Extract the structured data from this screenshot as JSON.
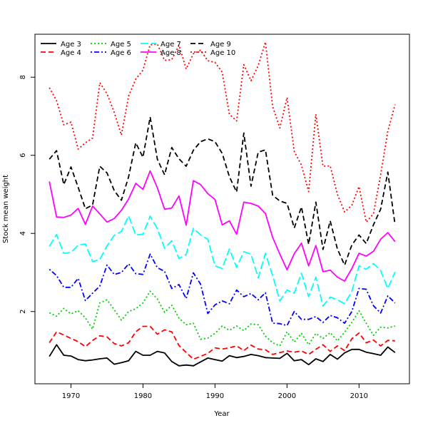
{
  "chart_data": {
    "type": "line",
    "title": "",
    "xlabel": "Year",
    "ylabel": "Stock mean weight",
    "xlim": [
      1965,
      2017
    ],
    "ylim": [
      0.15,
      9.1
    ],
    "x_ticks": [
      1970,
      1980,
      1990,
      2000,
      2010
    ],
    "y_ticks": [
      2,
      4,
      6,
      8
    ],
    "grid": false,
    "legend_position": "top-left",
    "x": [
      1967,
      1968,
      1969,
      1970,
      1971,
      1972,
      1973,
      1974,
      1975,
      1976,
      1977,
      1978,
      1979,
      1980,
      1981,
      1982,
      1983,
      1984,
      1985,
      1986,
      1987,
      1988,
      1989,
      1990,
      1991,
      1992,
      1993,
      1994,
      1995,
      1996,
      1997,
      1998,
      1999,
      2000,
      2001,
      2002,
      2003,
      2004,
      2005,
      2006,
      2007,
      2008,
      2009,
      2010,
      2011,
      2012,
      2013,
      2014,
      2015
    ],
    "series": [
      {
        "name": "Age 3",
        "color": "#000000",
        "dash": "solid",
        "values": [
          0.85,
          1.15,
          0.88,
          0.86,
          0.77,
          0.74,
          0.76,
          0.79,
          0.81,
          0.65,
          0.69,
          0.74,
          0.98,
          0.88,
          0.88,
          0.98,
          0.94,
          0.72,
          0.61,
          0.63,
          0.61,
          0.71,
          0.81,
          0.77,
          0.73,
          0.87,
          0.82,
          0.85,
          0.9,
          0.87,
          0.82,
          0.81,
          0.8,
          0.93,
          0.74,
          0.77,
          0.64,
          0.79,
          0.72,
          0.9,
          0.78,
          0.94,
          1.03,
          1.03,
          0.96,
          0.92,
          0.88,
          1.09,
          0.95
        ]
      },
      {
        "name": "Age 4",
        "color": "#ff0000",
        "dash": "dashed",
        "values": [
          1.2,
          1.48,
          1.4,
          1.31,
          1.23,
          1.1,
          1.26,
          1.38,
          1.35,
          1.18,
          1.12,
          1.2,
          1.48,
          1.62,
          1.62,
          1.42,
          1.53,
          1.48,
          1.13,
          0.95,
          0.78,
          0.85,
          0.93,
          1.07,
          1.04,
          1.07,
          1.12,
          1.0,
          1.14,
          1.04,
          1.02,
          0.9,
          0.95,
          0.99,
          0.96,
          0.99,
          0.9,
          1.03,
          1.15,
          0.98,
          1.12,
          1.0,
          1.3,
          1.45,
          1.2,
          1.27,
          1.12,
          1.26,
          1.25
        ]
      },
      {
        "name": "Age 5",
        "color": "#00cd00",
        "dash": "dotted",
        "values": [
          1.97,
          1.88,
          2.08,
          1.94,
          2.02,
          1.84,
          1.55,
          2.22,
          2.3,
          2.05,
          1.78,
          2.0,
          2.07,
          2.22,
          2.52,
          2.32,
          1.98,
          2.16,
          1.83,
          1.66,
          1.7,
          1.29,
          1.32,
          1.44,
          1.63,
          1.52,
          1.63,
          1.51,
          1.68,
          1.66,
          1.37,
          1.2,
          1.12,
          1.48,
          1.22,
          1.44,
          1.15,
          1.44,
          1.31,
          1.46,
          1.25,
          1.47,
          1.72,
          2.02,
          1.7,
          1.39,
          1.6,
          1.58,
          1.63
        ]
      },
      {
        "name": "Age 6",
        "color": "#0000ff",
        "dash": "dotdash",
        "values": [
          3.08,
          2.92,
          2.62,
          2.62,
          2.85,
          2.28,
          2.47,
          2.65,
          3.19,
          2.95,
          3.0,
          3.22,
          2.97,
          2.95,
          3.47,
          3.12,
          3.03,
          2.59,
          2.69,
          2.33,
          2.99,
          2.7,
          1.95,
          2.17,
          2.27,
          2.2,
          2.55,
          2.38,
          2.46,
          2.3,
          2.48,
          1.7,
          1.69,
          1.64,
          2.0,
          1.8,
          1.8,
          1.87,
          1.72,
          1.9,
          1.84,
          1.7,
          2.0,
          2.59,
          2.57,
          2.15,
          1.96,
          2.4,
          2.22
        ]
      },
      {
        "name": "Age 7",
        "color": "#00ffff",
        "dash": "longdash",
        "values": [
          3.67,
          3.97,
          3.49,
          3.51,
          3.7,
          3.73,
          3.28,
          3.33,
          3.68,
          3.95,
          4.05,
          4.45,
          3.96,
          3.98,
          4.44,
          4.12,
          3.62,
          3.81,
          3.36,
          3.46,
          4.13,
          3.96,
          3.85,
          3.17,
          3.1,
          3.6,
          3.13,
          3.53,
          3.47,
          2.86,
          3.49,
          2.92,
          2.27,
          2.55,
          2.47,
          2.98,
          2.38,
          2.88,
          2.14,
          2.37,
          2.3,
          2.2,
          2.51,
          3.17,
          3.08,
          3.23,
          3.05,
          2.59,
          3.01
        ]
      },
      {
        "name": "Age 8",
        "color": "#ff00ff",
        "dash": "solid",
        "values": [
          5.33,
          4.42,
          4.41,
          4.47,
          4.64,
          4.23,
          4.7,
          4.5,
          4.29,
          4.38,
          4.59,
          4.88,
          5.28,
          5.13,
          5.6,
          5.17,
          4.62,
          4.65,
          4.96,
          4.21,
          5.35,
          5.25,
          5.02,
          4.87,
          4.22,
          4.32,
          3.98,
          4.8,
          4.77,
          4.7,
          4.51,
          3.9,
          3.47,
          3.07,
          3.48,
          3.75,
          3.17,
          3.69,
          3.02,
          3.06,
          2.88,
          2.78,
          3.1,
          3.49,
          3.42,
          3.54,
          3.85,
          4.02,
          3.79
        ]
      },
      {
        "name": "Age 9",
        "color": "#000000",
        "dash": "dashed",
        "values": [
          5.9,
          6.12,
          5.25,
          5.7,
          5.18,
          4.63,
          4.73,
          5.72,
          5.55,
          5.1,
          4.85,
          5.45,
          6.32,
          5.95,
          6.98,
          5.9,
          5.5,
          6.2,
          5.91,
          5.72,
          6.13,
          6.35,
          6.42,
          6.35,
          6.05,
          5.45,
          5.06,
          6.57,
          5.21,
          6.08,
          6.14,
          4.98,
          4.83,
          4.77,
          4.14,
          4.68,
          3.72,
          4.8,
          3.59,
          4.32,
          3.6,
          3.19,
          3.7,
          3.96,
          3.74,
          4.22,
          4.62,
          5.57,
          4.22
        ]
      },
      {
        "name": "Age 10",
        "color": "#ff0000",
        "dash": "dotted",
        "values": [
          7.73,
          7.4,
          6.78,
          6.85,
          6.16,
          6.32,
          6.44,
          7.86,
          7.58,
          7.1,
          6.52,
          7.52,
          7.95,
          8.18,
          8.83,
          8.85,
          8.43,
          8.45,
          8.82,
          8.21,
          8.6,
          8.69,
          8.42,
          8.38,
          8.13,
          7.05,
          6.88,
          8.32,
          7.91,
          8.3,
          8.9,
          7.25,
          6.7,
          7.48,
          6.1,
          5.75,
          5.07,
          7.05,
          5.72,
          5.73,
          5.0,
          4.55,
          4.72,
          5.2,
          4.29,
          4.5,
          5.5,
          6.62,
          7.3
        ]
      }
    ]
  }
}
